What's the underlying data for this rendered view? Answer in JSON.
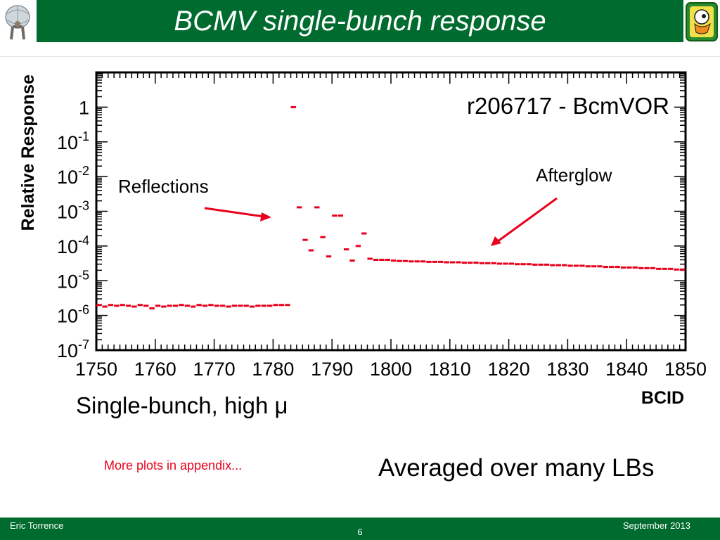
{
  "slide": {
    "title": "BCMV single-bunch response",
    "run_label": "r206717 - BcmVOR",
    "annotation_reflections": "Reflections",
    "annotation_afterglow": "Afterglow",
    "subtitle": "Single-bunch, high μ",
    "more_plots": "More plots in appendix...",
    "averaged": "Averaged over many LBs"
  },
  "footer": {
    "author": "Eric Torrence",
    "page": "6",
    "date": "September 2013"
  },
  "colors": {
    "header_green": "#006b2e",
    "data_red": "#e8001c",
    "arrow_red": "#e8001c"
  },
  "icons": {
    "left_logo": "atlas-logo-icon",
    "right_logo": "duck-mascot-logo-icon"
  },
  "chart_data": {
    "type": "scatter",
    "log_y": true,
    "xlabel": "BCID",
    "ylabel": "Relative Response",
    "xlim": [
      1750,
      1850
    ],
    "ylim": [
      1e-07,
      10
    ],
    "x_ticks": [
      "1750",
      "1760",
      "1770",
      "1780",
      "1790",
      "1800",
      "1810",
      "1820",
      "1830",
      "1840",
      "1850"
    ],
    "y_ticks": [
      {
        "base": "1",
        "exp": ""
      },
      {
        "base": "10",
        "exp": "-1"
      },
      {
        "base": "10",
        "exp": "-2"
      },
      {
        "base": "10",
        "exp": "-3"
      },
      {
        "base": "10",
        "exp": "-4"
      },
      {
        "base": "10",
        "exp": "-5"
      },
      {
        "base": "10",
        "exp": "-6"
      },
      {
        "base": "10",
        "exp": "-7"
      }
    ],
    "series": [
      {
        "points": [
          [
            1750,
            2e-06
          ],
          [
            1751,
            1.8e-06
          ],
          [
            1752,
            2e-06
          ],
          [
            1753,
            1.9e-06
          ],
          [
            1754,
            2e-06
          ],
          [
            1755,
            1.9e-06
          ],
          [
            1756,
            1.8e-06
          ],
          [
            1757,
            2e-06
          ],
          [
            1758,
            1.9e-06
          ],
          [
            1759,
            1.6e-06
          ],
          [
            1760,
            1.9e-06
          ],
          [
            1761,
            1.8e-06
          ],
          [
            1762,
            1.9e-06
          ],
          [
            1763,
            1.9e-06
          ],
          [
            1764,
            2e-06
          ],
          [
            1765,
            1.9e-06
          ],
          [
            1766,
            1.8e-06
          ],
          [
            1767,
            2e-06
          ],
          [
            1768,
            1.9e-06
          ],
          [
            1769,
            2e-06
          ],
          [
            1770,
            1.9e-06
          ],
          [
            1771,
            1.9e-06
          ],
          [
            1772,
            1.8e-06
          ],
          [
            1773,
            1.9e-06
          ],
          [
            1774,
            1.9e-06
          ],
          [
            1775,
            1.9e-06
          ],
          [
            1776,
            1.8e-06
          ],
          [
            1777,
            1.9e-06
          ],
          [
            1778,
            1.9e-06
          ],
          [
            1779,
            1.9e-06
          ],
          [
            1780,
            2e-06
          ],
          [
            1781,
            2e-06
          ],
          [
            1782,
            2e-06
          ],
          [
            1783,
            1.0
          ],
          [
            1784,
            0.0013
          ],
          [
            1785,
            0.00015
          ],
          [
            1786,
            7.5e-05
          ],
          [
            1787,
            0.0013
          ],
          [
            1788,
            0.00018
          ],
          [
            1789,
            5e-05
          ],
          [
            1790,
            0.00075
          ],
          [
            1791,
            0.00075
          ],
          [
            1792,
            8e-05
          ],
          [
            1793,
            3.8e-05
          ],
          [
            1794,
            0.0001
          ],
          [
            1795,
            0.00023
          ],
          [
            1796,
            4.3e-05
          ],
          [
            1797,
            4e-05
          ],
          [
            1798,
            4e-05
          ],
          [
            1799,
            4e-05
          ],
          [
            1800,
            3.8e-05
          ],
          [
            1801,
            3.7e-05
          ],
          [
            1802,
            3.7e-05
          ],
          [
            1803,
            3.6e-05
          ],
          [
            1804,
            3.6e-05
          ],
          [
            1805,
            3.6e-05
          ],
          [
            1806,
            3.5e-05
          ],
          [
            1807,
            3.5e-05
          ],
          [
            1808,
            3.5e-05
          ],
          [
            1809,
            3.4e-05
          ],
          [
            1810,
            3.4e-05
          ],
          [
            1811,
            3.4e-05
          ],
          [
            1812,
            3.3e-05
          ],
          [
            1813,
            3.3e-05
          ],
          [
            1814,
            3.3e-05
          ],
          [
            1815,
            3.2e-05
          ],
          [
            1816,
            3.2e-05
          ],
          [
            1817,
            3.2e-05
          ],
          [
            1818,
            3.1e-05
          ],
          [
            1819,
            3.1e-05
          ],
          [
            1820,
            3.1e-05
          ],
          [
            1821,
            3e-05
          ],
          [
            1822,
            3e-05
          ],
          [
            1823,
            3e-05
          ],
          [
            1824,
            2.9e-05
          ],
          [
            1825,
            2.9e-05
          ],
          [
            1826,
            2.9e-05
          ],
          [
            1827,
            2.8e-05
          ],
          [
            1828,
            2.8e-05
          ],
          [
            1829,
            2.8e-05
          ],
          [
            1830,
            2.7e-05
          ],
          [
            1831,
            2.7e-05
          ],
          [
            1832,
            2.7e-05
          ],
          [
            1833,
            2.6e-05
          ],
          [
            1834,
            2.6e-05
          ],
          [
            1835,
            2.6e-05
          ],
          [
            1836,
            2.5e-05
          ],
          [
            1837,
            2.5e-05
          ],
          [
            1838,
            2.5e-05
          ],
          [
            1839,
            2.4e-05
          ],
          [
            1840,
            2.4e-05
          ],
          [
            1841,
            2.4e-05
          ],
          [
            1842,
            2.3e-05
          ],
          [
            1843,
            2.3e-05
          ],
          [
            1844,
            2.3e-05
          ],
          [
            1845,
            2.2e-05
          ],
          [
            1846,
            2.2e-05
          ],
          [
            1847,
            2.2e-05
          ],
          [
            1848,
            2.1e-05
          ],
          [
            1849,
            2.1e-05
          ]
        ]
      }
    ],
    "grid": false,
    "legend": "none"
  }
}
